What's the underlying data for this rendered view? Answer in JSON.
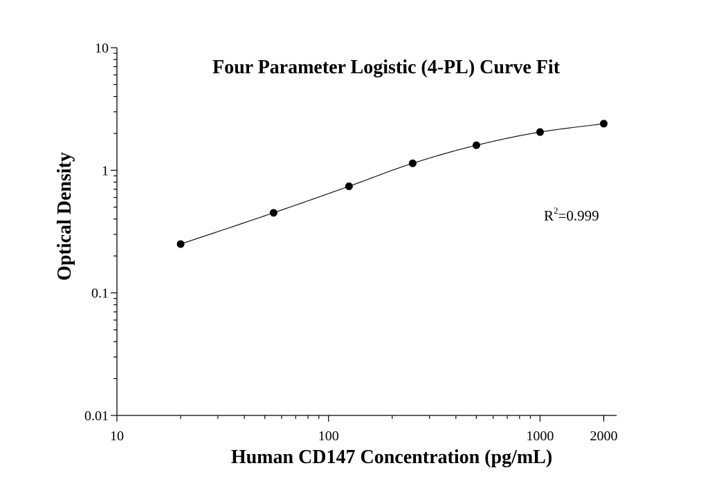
{
  "chart_data": {
    "type": "scatter",
    "title": "Four Parameter Logistic (4-PL) Curve Fit",
    "xlabel": "Human CD147 Concentration (pg/mL)",
    "ylabel": "Optical Density",
    "x_scale": "log",
    "y_scale": "log",
    "xlim": [
      10,
      2300
    ],
    "ylim": [
      0.01,
      10
    ],
    "x_ticks": [
      {
        "value": 10,
        "label": "10"
      },
      {
        "value": 100,
        "label": "100"
      },
      {
        "value": 1000,
        "label": "1000"
      },
      {
        "value": 2000,
        "label": "2000"
      }
    ],
    "y_ticks": [
      {
        "value": 0.01,
        "label": "0.01"
      },
      {
        "value": 0.1,
        "label": "0.1"
      },
      {
        "value": 1,
        "label": "1"
      },
      {
        "value": 10,
        "label": "10"
      }
    ],
    "grid": false,
    "legend": "none",
    "series": [
      {
        "x": [
          20,
          55,
          125,
          250,
          500,
          1000,
          2000
        ],
        "y": [
          0.25,
          0.45,
          0.74,
          1.14,
          1.6,
          2.05,
          2.4
        ]
      }
    ],
    "fit_curve": {
      "model": "4-PL",
      "x_range": [
        20,
        2000
      ]
    },
    "annotation": {
      "r_label": "R",
      "r_superscript": "2",
      "r_value": "=0.999"
    },
    "colors": {
      "line": "#000000",
      "markers": "#000000",
      "background": "#ffffff"
    }
  }
}
